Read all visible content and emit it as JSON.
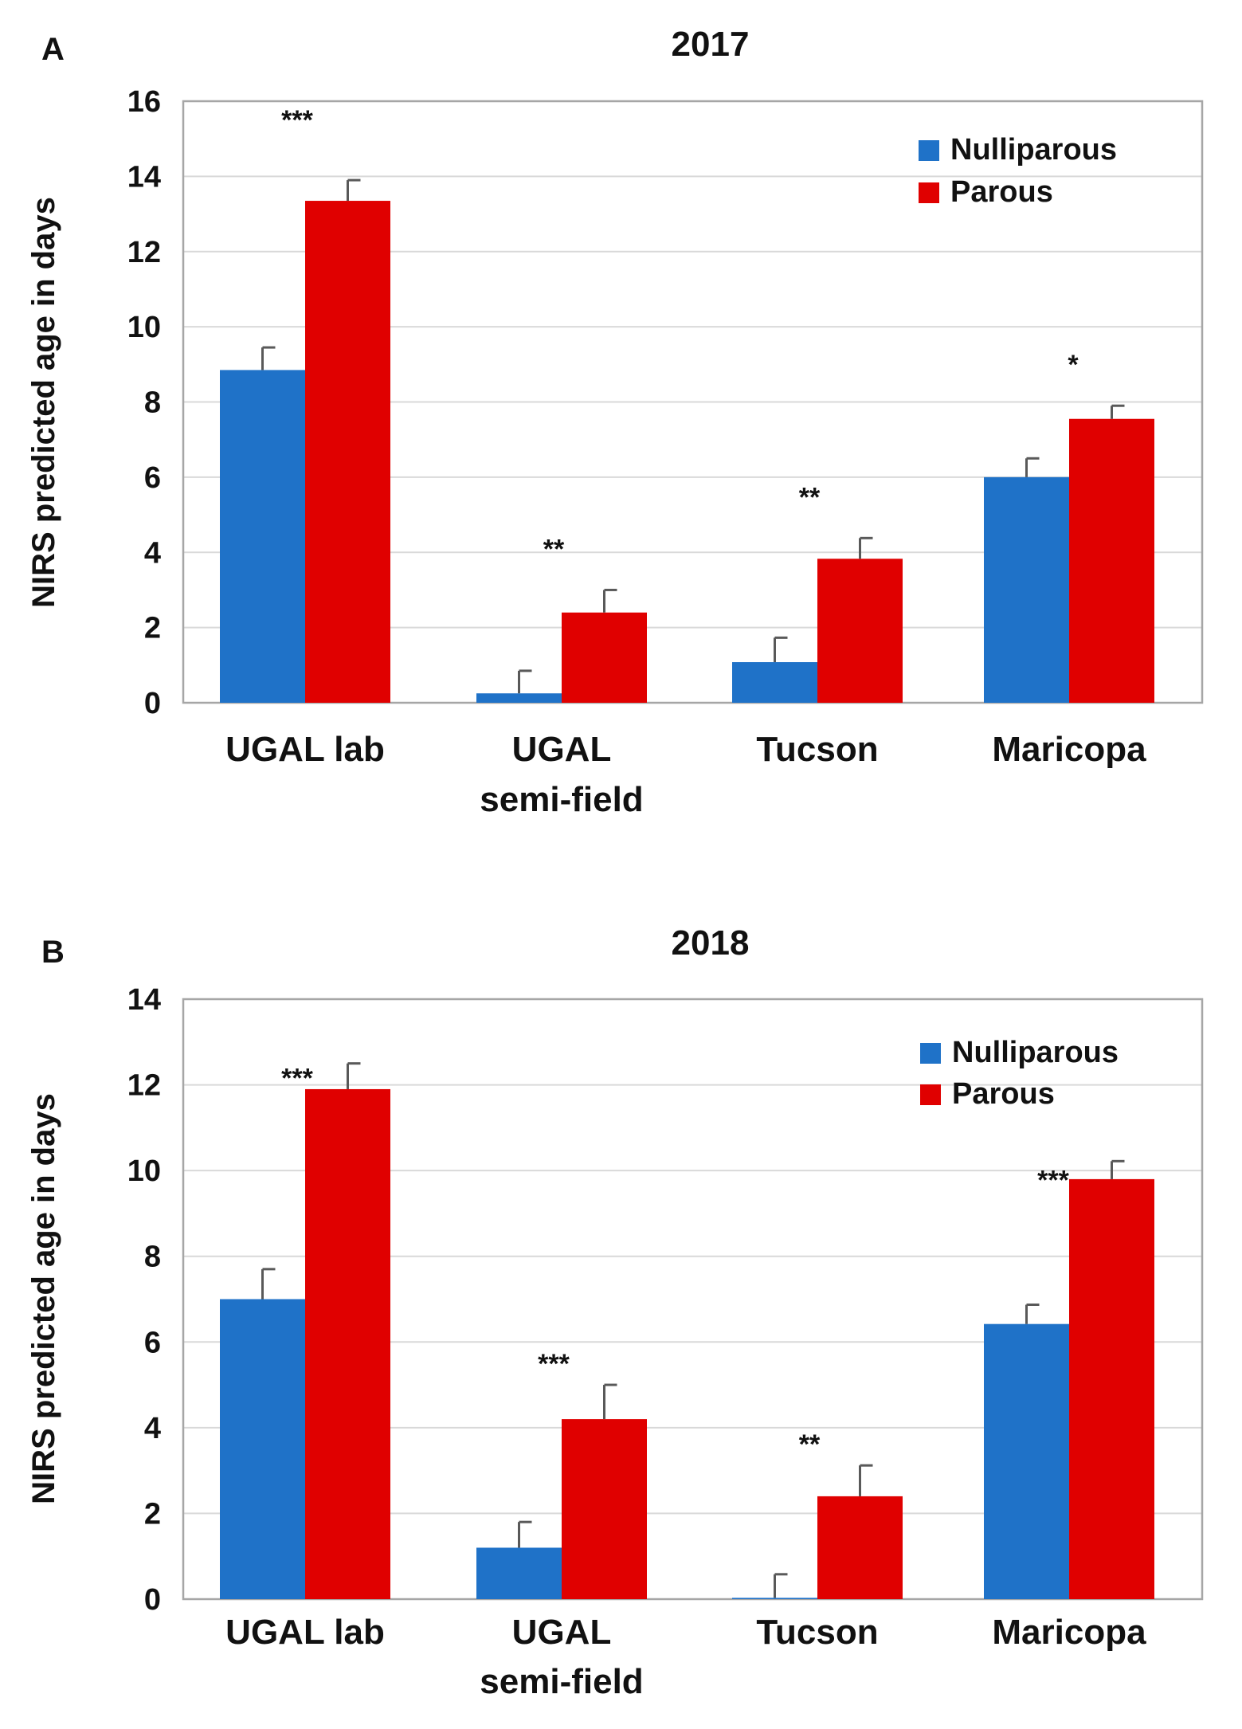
{
  "chart_data": [
    {
      "type": "bar",
      "panel": "A",
      "title": "2017",
      "ylabel": "NIRS predicted age in days",
      "xlabel": "",
      "ylim": [
        0,
        16
      ],
      "yticks": [
        0,
        2,
        4,
        6,
        8,
        10,
        12,
        14,
        16
      ],
      "categories": [
        [
          "UGAL lab"
        ],
        [
          "UGAL",
          "semi-field"
        ],
        [
          "Tucson"
        ],
        [
          "Maricopa"
        ]
      ],
      "series": [
        {
          "name": "Nulliparous",
          "color": "#1f72c8",
          "values": [
            8.85,
            0.25,
            1.08,
            6.0
          ],
          "errors": [
            0.6,
            0.6,
            0.65,
            0.5
          ]
        },
        {
          "name": "Parous",
          "color": "#e00000",
          "values": [
            13.35,
            2.4,
            3.83,
            7.55
          ],
          "errors": [
            0.55,
            0.6,
            0.55,
            0.35
          ]
        }
      ],
      "significance": [
        "***",
        "**",
        "**",
        "*"
      ],
      "legend": "top-right"
    },
    {
      "type": "bar",
      "panel": "B",
      "title": "2018",
      "ylabel": "NIRS predicted age in days",
      "xlabel": "",
      "ylim": [
        0,
        14
      ],
      "yticks": [
        0,
        2,
        4,
        6,
        8,
        10,
        12,
        14
      ],
      "categories": [
        [
          "UGAL lab"
        ],
        [
          "UGAL",
          "semi-field"
        ],
        [
          "Tucson"
        ],
        [
          "Maricopa"
        ]
      ],
      "series": [
        {
          "name": "Nulliparous",
          "color": "#1f72c8",
          "values": [
            7.0,
            1.2,
            0.03,
            6.42
          ],
          "errors": [
            0.7,
            0.6,
            0.55,
            0.45
          ]
        },
        {
          "name": "Parous",
          "color": "#e00000",
          "values": [
            11.9,
            4.2,
            2.4,
            9.8
          ],
          "errors": [
            0.6,
            0.8,
            0.72,
            0.42
          ]
        }
      ],
      "significance": [
        "***",
        "***",
        "**",
        "***"
      ],
      "legend": "top-right"
    }
  ]
}
